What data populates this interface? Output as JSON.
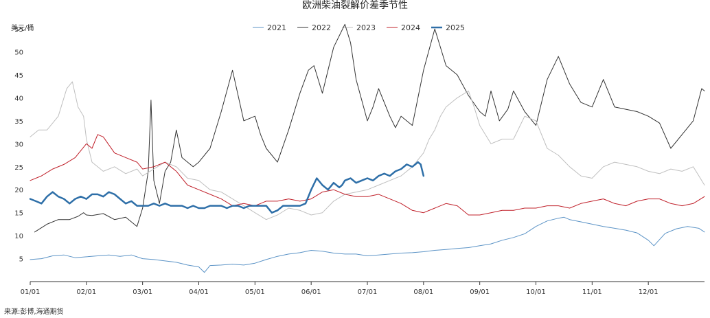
{
  "chart_data": {
    "type": "line",
    "title": "欧洲柴油裂解价差季节性",
    "ylabel": "美元/桶",
    "xlabel": "",
    "ylim": [
      0,
      58
    ],
    "xlim": [
      0,
      12
    ],
    "yticks": [
      5,
      10,
      15,
      20,
      25,
      30,
      35,
      40,
      45,
      50,
      55
    ],
    "xtick_labels": [
      "01/01",
      "02/01",
      "03/01",
      "04/01",
      "05/01",
      "06/01",
      "07/01",
      "08/01",
      "09/01",
      "10/01",
      "11/01",
      "12/01"
    ],
    "grid": false,
    "legend_position": "top",
    "source": "来源:彭博,海通期货",
    "series": [
      {
        "name": "2021",
        "color": "#5b93c6",
        "width": 1,
        "x": [
          0,
          0.2,
          0.4,
          0.6,
          0.8,
          1.0,
          1.2,
          1.4,
          1.6,
          1.8,
          2.0,
          2.2,
          2.4,
          2.6,
          2.8,
          3.0,
          3.1,
          3.2,
          3.4,
          3.6,
          3.8,
          4.0,
          4.2,
          4.4,
          4.6,
          4.8,
          5.0,
          5.2,
          5.4,
          5.6,
          5.8,
          6.0,
          6.2,
          6.4,
          6.6,
          6.8,
          7.0,
          7.2,
          7.4,
          7.6,
          7.8,
          8.0,
          8.2,
          8.4,
          8.6,
          8.8,
          9.0,
          9.2,
          9.4,
          9.5,
          9.6,
          9.8,
          10.0,
          10.2,
          10.4,
          10.6,
          10.8,
          11.0,
          11.1,
          11.3,
          11.5,
          11.7,
          11.9,
          12.0
        ],
        "y": [
          4.8,
          5.0,
          5.6,
          5.8,
          5.2,
          5.4,
          5.6,
          5.8,
          5.5,
          5.8,
          5.0,
          4.8,
          4.5,
          4.2,
          3.6,
          3.2,
          2.0,
          3.5,
          3.6,
          3.8,
          3.6,
          4.0,
          4.8,
          5.5,
          6.0,
          6.3,
          6.8,
          6.6,
          6.2,
          6.0,
          6.0,
          5.6,
          5.8,
          6.0,
          6.2,
          6.3,
          6.5,
          6.8,
          7.0,
          7.2,
          7.4,
          7.8,
          8.2,
          9.0,
          9.6,
          10.4,
          12.0,
          13.2,
          13.8,
          14.0,
          13.5,
          13.0,
          12.5,
          12.0,
          11.6,
          11.2,
          10.6,
          9.0,
          7.8,
          10.5,
          11.5,
          12.0,
          11.6,
          10.8
        ]
      },
      {
        "name": "2022",
        "color": "#333333",
        "width": 1,
        "x": [
          0.08,
          0.3,
          0.5,
          0.7,
          0.85,
          0.95,
          1.0,
          1.1,
          1.3,
          1.5,
          1.7,
          1.9,
          2.0,
          2.1,
          2.15,
          2.2,
          2.3,
          2.4,
          2.5,
          2.6,
          2.7,
          2.9,
          3.0,
          3.2,
          3.4,
          3.6,
          3.8,
          4.0,
          4.1,
          4.2,
          4.4,
          4.6,
          4.8,
          4.95,
          5.05,
          5.2,
          5.4,
          5.6,
          5.7,
          5.8,
          6.0,
          6.1,
          6.2,
          6.4,
          6.5,
          6.6,
          6.8,
          7.0,
          7.2,
          7.4,
          7.6,
          7.8,
          8.0,
          8.1,
          8.2,
          8.35,
          8.5,
          8.6,
          8.8,
          9.0,
          9.2,
          9.4,
          9.6,
          9.8,
          10.0,
          10.2,
          10.4,
          10.6,
          10.8,
          11.0,
          11.2,
          11.4,
          11.6,
          11.8,
          11.95,
          12.0
        ],
        "y": [
          10.8,
          12.5,
          13.5,
          13.5,
          14.2,
          15.0,
          14.5,
          14.4,
          14.8,
          13.5,
          14.0,
          12.0,
          16.0,
          24.0,
          39.5,
          22.0,
          17.0,
          24.0,
          26.0,
          33.0,
          27.0,
          25.0,
          26.0,
          29.0,
          37.0,
          46.0,
          35.0,
          36.0,
          32.0,
          29.0,
          26.0,
          33.0,
          41.0,
          46.0,
          47.0,
          41.0,
          51.0,
          56.0,
          52.0,
          44.0,
          35.0,
          38.0,
          42.0,
          36.0,
          33.5,
          36.0,
          34.0,
          46.0,
          55.0,
          47.0,
          45.0,
          40.5,
          37.0,
          36.0,
          41.5,
          35.0,
          37.5,
          41.5,
          37.0,
          34.0,
          44.0,
          49.0,
          43.0,
          39.0,
          38.0,
          44.0,
          38.0,
          37.5,
          37.0,
          36.0,
          34.5,
          29.0,
          32.0,
          35.0,
          42.0,
          41.5
        ]
      },
      {
        "name": "2023",
        "color": "#bfbfbf",
        "width": 1,
        "x": [
          0,
          0.15,
          0.3,
          0.5,
          0.65,
          0.75,
          0.85,
          0.95,
          1.0,
          1.1,
          1.3,
          1.5,
          1.7,
          1.9,
          2.0,
          2.2,
          2.4,
          2.6,
          2.8,
          3.0,
          3.2,
          3.4,
          3.6,
          3.8,
          4.0,
          4.2,
          4.4,
          4.6,
          4.8,
          5.0,
          5.2,
          5.4,
          5.6,
          5.8,
          6.0,
          6.2,
          6.4,
          6.6,
          6.8,
          7.0,
          7.1,
          7.2,
          7.3,
          7.4,
          7.6,
          7.8,
          7.9,
          8.0,
          8.2,
          8.4,
          8.6,
          8.8,
          9.0,
          9.2,
          9.4,
          9.6,
          9.8,
          10.0,
          10.2,
          10.4,
          10.6,
          10.8,
          11.0,
          11.2,
          11.4,
          11.6,
          11.8,
          11.9,
          12.0
        ],
        "y": [
          31.5,
          33.0,
          33.0,
          36.0,
          42.0,
          43.5,
          38.0,
          36.0,
          31.0,
          26.0,
          24.0,
          25.0,
          23.5,
          24.5,
          23.0,
          24.5,
          26.0,
          25.0,
          22.5,
          22.0,
          20.0,
          19.5,
          18.0,
          16.5,
          15.0,
          13.5,
          14.5,
          16.0,
          15.5,
          14.5,
          15.0,
          17.5,
          19.0,
          19.5,
          20.0,
          21.0,
          22.0,
          23.0,
          25.0,
          28.0,
          31.0,
          33.0,
          36.0,
          38.0,
          40.0,
          41.5,
          38.0,
          34.0,
          30.0,
          31.0,
          31.0,
          36.0,
          35.0,
          29.0,
          27.5,
          25.0,
          23.0,
          22.5,
          25.0,
          26.0,
          25.5,
          25.0,
          24.0,
          23.5,
          24.5,
          24.0,
          25.0,
          23.0,
          21.0
        ]
      },
      {
        "name": "2024",
        "color": "#c0202a",
        "width": 1,
        "x": [
          0,
          0.2,
          0.4,
          0.6,
          0.8,
          1.0,
          1.1,
          1.2,
          1.3,
          1.5,
          1.7,
          1.9,
          2.0,
          2.2,
          2.4,
          2.6,
          2.8,
          3.0,
          3.2,
          3.4,
          3.6,
          3.8,
          4.0,
          4.2,
          4.4,
          4.6,
          4.8,
          5.0,
          5.2,
          5.4,
          5.6,
          5.8,
          6.0,
          6.2,
          6.4,
          6.6,
          6.8,
          7.0,
          7.2,
          7.4,
          7.6,
          7.8,
          8.0,
          8.2,
          8.4,
          8.6,
          8.8,
          9.0,
          9.2,
          9.4,
          9.6,
          9.8,
          10.0,
          10.2,
          10.4,
          10.6,
          10.8,
          11.0,
          11.2,
          11.4,
          11.6,
          11.8,
          12.0
        ],
        "y": [
          22.0,
          23.0,
          24.5,
          25.5,
          27.0,
          30.0,
          29.0,
          32.0,
          31.5,
          28.0,
          27.0,
          26.0,
          24.5,
          25.0,
          26.0,
          24.0,
          21.0,
          20.0,
          19.0,
          18.0,
          16.5,
          17.0,
          16.5,
          17.5,
          17.5,
          18.0,
          17.5,
          18.0,
          19.5,
          20.0,
          19.0,
          18.5,
          18.5,
          19.0,
          18.0,
          17.0,
          15.5,
          15.0,
          16.0,
          17.0,
          16.5,
          14.5,
          14.5,
          15.0,
          15.5,
          15.5,
          16.0,
          16.0,
          16.5,
          16.5,
          16.0,
          17.0,
          17.5,
          18.0,
          17.0,
          16.5,
          17.5,
          18.0,
          18.0,
          17.0,
          16.5,
          17.0,
          18.5
        ]
      },
      {
        "name": "2025",
        "color": "#2e6fa8",
        "width": 2.5,
        "x": [
          0,
          0.1,
          0.2,
          0.3,
          0.4,
          0.5,
          0.6,
          0.7,
          0.8,
          0.9,
          1.0,
          1.1,
          1.2,
          1.3,
          1.4,
          1.5,
          1.6,
          1.7,
          1.8,
          1.9,
          2.0,
          2.1,
          2.2,
          2.3,
          2.4,
          2.5,
          2.6,
          2.7,
          2.8,
          2.9,
          3.0,
          3.1,
          3.2,
          3.3,
          3.4,
          3.5,
          3.6,
          3.7,
          3.8,
          3.9,
          4.0,
          4.1,
          4.2,
          4.3,
          4.4,
          4.5,
          4.6,
          4.7,
          4.8,
          4.9,
          5.0,
          5.1,
          5.2,
          5.3,
          5.4,
          5.5,
          5.55,
          5.6,
          5.7,
          5.8,
          5.9,
          6.0,
          6.1,
          6.2,
          6.3,
          6.4,
          6.5,
          6.6,
          6.7,
          6.8,
          6.9,
          6.95,
          7.0
        ],
        "y": [
          18.0,
          17.5,
          17.0,
          18.5,
          19.5,
          18.5,
          18.0,
          17.0,
          18.0,
          18.5,
          18.0,
          19.0,
          19.0,
          18.5,
          19.5,
          19.0,
          18.0,
          17.0,
          17.5,
          16.5,
          16.5,
          16.5,
          17.0,
          16.5,
          17.0,
          16.5,
          16.5,
          16.5,
          16.0,
          16.5,
          16.0,
          16.0,
          16.5,
          16.5,
          16.5,
          16.0,
          16.5,
          16.5,
          16.0,
          16.5,
          16.5,
          16.5,
          16.5,
          15.0,
          15.5,
          16.5,
          16.5,
          16.5,
          16.5,
          17.0,
          20.0,
          22.5,
          21.0,
          20.0,
          21.5,
          20.5,
          21.0,
          22.0,
          22.5,
          21.5,
          22.0,
          22.5,
          22.0,
          23.0,
          23.5,
          23.0,
          24.0,
          24.5,
          25.5,
          25.0,
          26.0,
          25.5,
          23.0
        ]
      }
    ]
  }
}
